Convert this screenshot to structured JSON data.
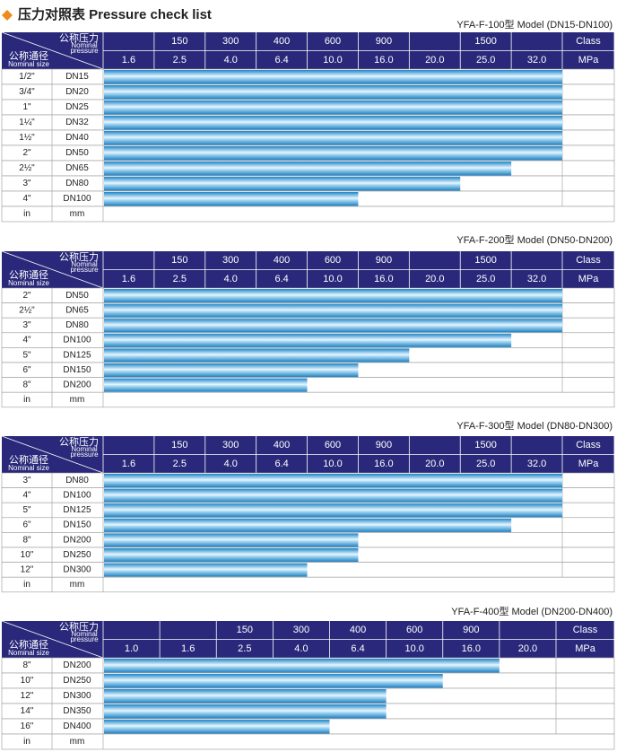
{
  "header": {
    "title": "压力对照表 Pressure check list"
  },
  "labels": {
    "pressure_cn": "公称压力",
    "pressure_en_1": "Nominal",
    "pressure_en_2": "pressure",
    "size_cn": "公称通径",
    "size_en": "Nominal size",
    "class": "Class",
    "mpa": "MPa",
    "in": "in",
    "mm": "mm"
  },
  "tables": [
    {
      "model": "YFA-F-100型  Model (DN15-DN100)",
      "classes": [
        null,
        150,
        300,
        400,
        600,
        900,
        null,
        1500,
        null
      ],
      "mpa": [
        "1.6",
        "2.5",
        "4.0",
        "6.4",
        "10.0",
        "16.0",
        "20.0",
        "25.0",
        "32.0"
      ],
      "rows": [
        {
          "size": "1/2\"",
          "dn": "DN15",
          "max": 32
        },
        {
          "size": "3/4\"",
          "dn": "DN20",
          "max": 32
        },
        {
          "size": "1\"",
          "dn": "DN25",
          "max": 32
        },
        {
          "size": "1¼\"",
          "dn": "DN32",
          "max": 32
        },
        {
          "size": "1½\"",
          "dn": "DN40",
          "max": 32
        },
        {
          "size": "2\"",
          "dn": "DN50",
          "max": 32
        },
        {
          "size": "2½\"",
          "dn": "DN65",
          "max": 25
        },
        {
          "size": "3\"",
          "dn": "DN80",
          "max": 20
        },
        {
          "size": "4\"",
          "dn": "DN100",
          "max": 10
        }
      ]
    },
    {
      "model": "YFA-F-200型  Model (DN50-DN200)",
      "classes": [
        null,
        150,
        300,
        400,
        600,
        900,
        null,
        1500,
        null
      ],
      "mpa": [
        "1.6",
        "2.5",
        "4.0",
        "6.4",
        "10.0",
        "16.0",
        "20.0",
        "25.0",
        "32.0"
      ],
      "rows": [
        {
          "size": "2\"",
          "dn": "DN50",
          "max": 32
        },
        {
          "size": "2½\"",
          "dn": "DN65",
          "max": 32
        },
        {
          "size": "3\"",
          "dn": "DN80",
          "max": 32
        },
        {
          "size": "4\"",
          "dn": "DN100",
          "max": 25
        },
        {
          "size": "5\"",
          "dn": "DN125",
          "max": 16
        },
        {
          "size": "6\"",
          "dn": "DN150",
          "max": 10
        },
        {
          "size": "8\"",
          "dn": "DN200",
          "max": 6.4
        }
      ]
    },
    {
      "model": "YFA-F-300型  Model (DN80-DN300)",
      "classes": [
        null,
        150,
        300,
        400,
        600,
        900,
        null,
        1500,
        null
      ],
      "mpa": [
        "1.6",
        "2.5",
        "4.0",
        "6.4",
        "10.0",
        "16.0",
        "20.0",
        "25.0",
        "32.0"
      ],
      "rows": [
        {
          "size": "3\"",
          "dn": "DN80",
          "max": 32
        },
        {
          "size": "4\"",
          "dn": "DN100",
          "max": 32
        },
        {
          "size": "5\"",
          "dn": "DN125",
          "max": 32
        },
        {
          "size": "6\"",
          "dn": "DN150",
          "max": 25
        },
        {
          "size": "8\"",
          "dn": "DN200",
          "max": 10
        },
        {
          "size": "10\"",
          "dn": "DN250",
          "max": 10
        },
        {
          "size": "12\"",
          "dn": "DN300",
          "max": 6.4
        }
      ]
    },
    {
      "model": "YFA-F-400型  Model (DN200-DN400)",
      "classes": [
        null,
        null,
        150,
        300,
        400,
        600,
        900,
        null
      ],
      "mpa": [
        "1.0",
        "1.6",
        "2.5",
        "4.0",
        "6.4",
        "10.0",
        "16.0",
        "20.0"
      ],
      "rows": [
        {
          "size": "8\"",
          "dn": "DN200",
          "max": 16
        },
        {
          "size": "10\"",
          "dn": "DN250",
          "max": 10
        },
        {
          "size": "12\"",
          "dn": "DN300",
          "max": 6.4
        },
        {
          "size": "14\"",
          "dn": "DN350",
          "max": 6.4
        },
        {
          "size": "16\"",
          "dn": "DN400",
          "max": 4
        }
      ]
    }
  ]
}
